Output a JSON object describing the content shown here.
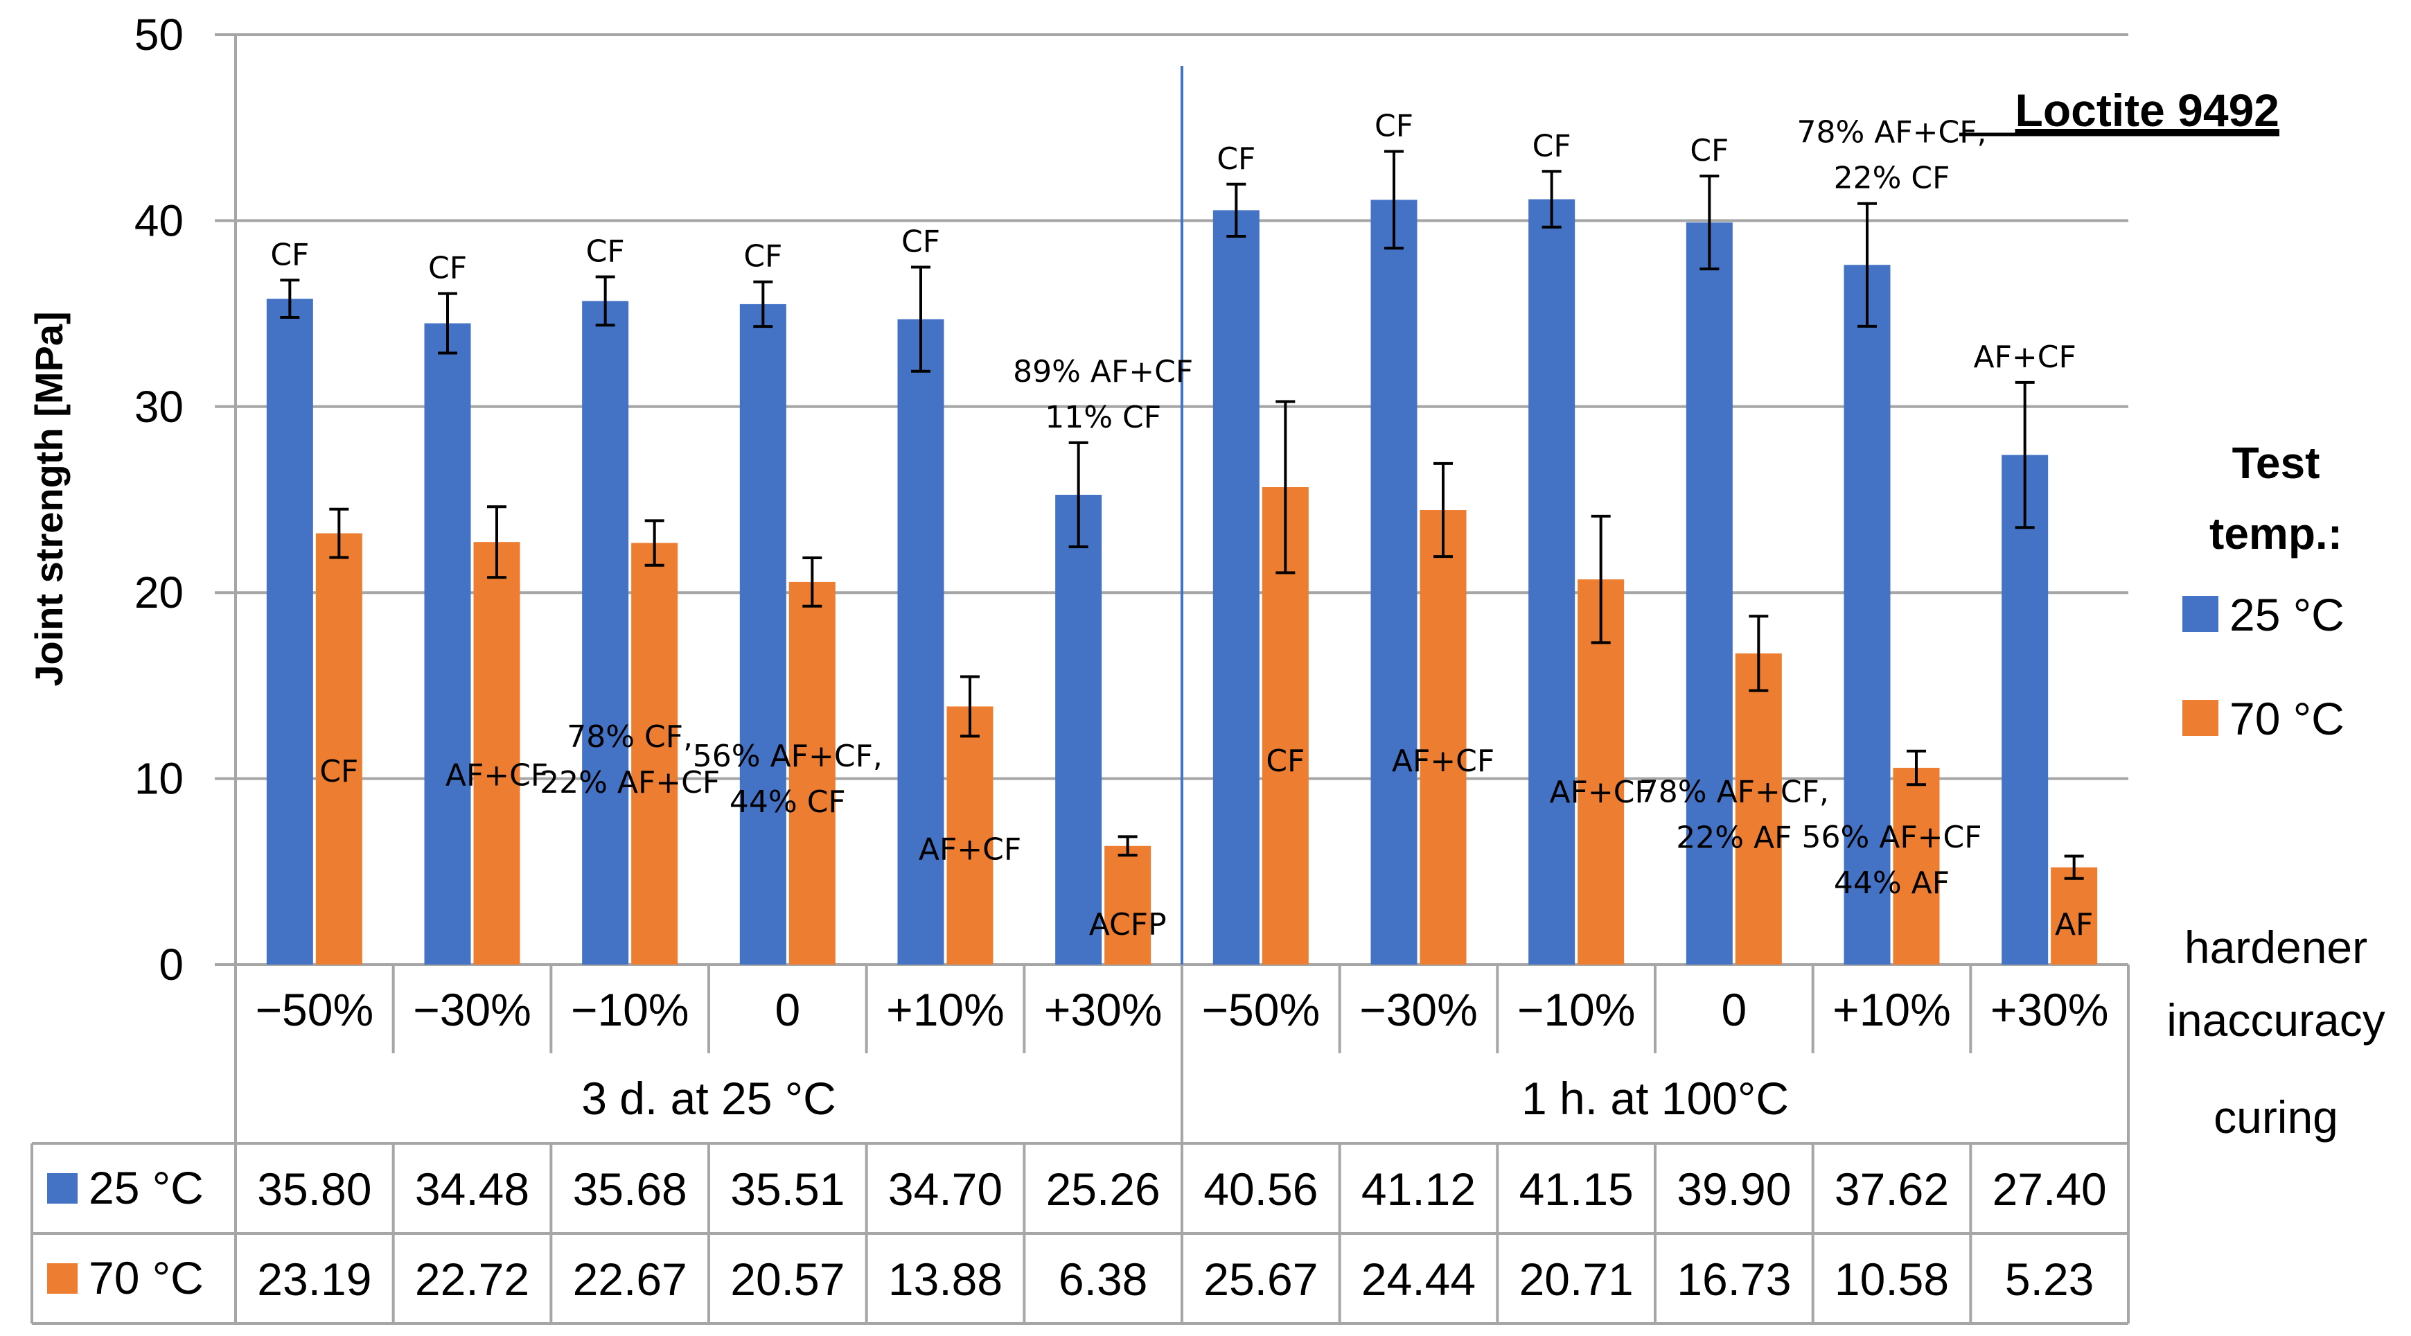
{
  "chart_data": {
    "type": "bar",
    "title": "Loctite 9492",
    "ylabel": "Joint strength [MPa]",
    "ylim": [
      0,
      50
    ],
    "yticks": [
      "0",
      "10",
      "20",
      "30",
      "40",
      "50"
    ],
    "categories": [
      "−50%",
      "−30%",
      "−10%",
      "0",
      "+10%",
      "+30%",
      "−50%",
      "−30%",
      "−10%",
      "0",
      "+10%",
      "+30%"
    ],
    "groups": [
      {
        "label": "3 d. at 25 °C"
      },
      {
        "label": "1 h. at 100°C"
      }
    ],
    "row_labels": {
      "inaccuracy": "hardener inaccuracy",
      "curing": "curing"
    },
    "legend": {
      "title_line1": "Test",
      "title_line2": "temp.:"
    },
    "series": [
      {
        "name": "25 °C",
        "color": "#4472c4",
        "values": [
          35.8,
          34.48,
          35.68,
          35.51,
          34.7,
          25.26,
          40.56,
          41.12,
          41.15,
          39.9,
          37.62,
          27.4
        ],
        "labels": [
          "35.80",
          "34.48",
          "35.68",
          "35.51",
          "34.70",
          "25.26",
          "40.56",
          "41.12",
          "41.15",
          "39.90",
          "37.62",
          "27.40"
        ],
        "errors": [
          1.0,
          1.6,
          1.3,
          1.2,
          2.8,
          2.8,
          1.4,
          2.6,
          1.5,
          2.5,
          3.3,
          3.9
        ],
        "failure": [
          [
            "CF"
          ],
          [
            "CF"
          ],
          [
            "CF"
          ],
          [
            "CF"
          ],
          [
            "CF"
          ],
          [
            "89% AF+CF",
            "11% CF"
          ],
          [
            "CF"
          ],
          [
            "CF"
          ],
          [
            "CF"
          ],
          [
            "CF"
          ],
          [
            "78% AF+CF,",
            "22% CF"
          ],
          [
            "AF+CF"
          ]
        ]
      },
      {
        "name": "70 °C",
        "color": "#ed7d31",
        "values": [
          23.19,
          22.72,
          22.67,
          20.57,
          13.88,
          6.38,
          25.67,
          24.44,
          20.71,
          16.73,
          10.58,
          5.23
        ],
        "labels": [
          "23.19",
          "22.72",
          "22.67",
          "20.57",
          "13.88",
          "6.38",
          "25.67",
          "24.44",
          "20.71",
          "16.73",
          "10.58",
          "5.23"
        ],
        "errors": [
          1.3,
          1.9,
          1.2,
          1.3,
          1.6,
          0.5,
          4.6,
          2.5,
          3.4,
          2.0,
          0.9,
          0.6
        ],
        "failure": [
          [
            "CF"
          ],
          [
            "AF+CF"
          ],
          [
            "78% CF,",
            "22% AF+CF"
          ],
          [
            "56% AF+CF,",
            "44% CF"
          ],
          [
            "AF+CF"
          ],
          [
            "ACFP"
          ],
          [
            "CF"
          ],
          [
            "AF+CF"
          ],
          [
            "AF+CF"
          ],
          [
            "78% AF+CF,",
            "22% AF"
          ],
          [
            "56% AF+CF",
            "44% AF"
          ],
          [
            "AF"
          ]
        ]
      }
    ]
  }
}
